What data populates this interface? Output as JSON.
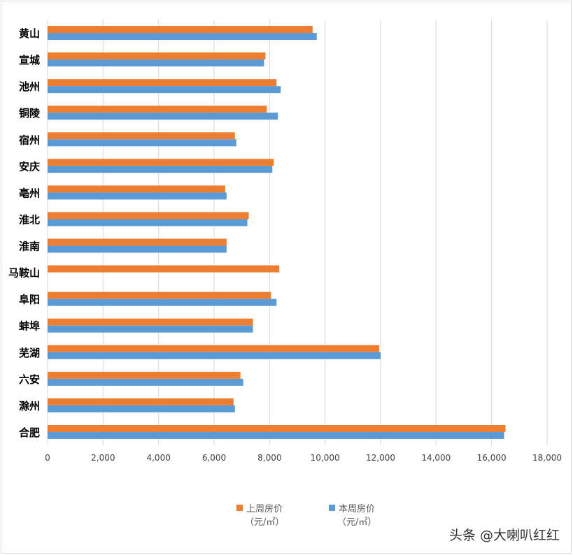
{
  "chart_data": {
    "type": "bar",
    "orientation": "horizontal",
    "categories": [
      "黄山",
      "宣城",
      "池州",
      "铜陵",
      "宿州",
      "安庆",
      "亳州",
      "淮北",
      "淮南",
      "马鞍山",
      "阜阳",
      "蚌埠",
      "芜湖",
      "六安",
      "滁州",
      "合肥"
    ],
    "series": [
      {
        "name": "上周房价",
        "unit": "（元/㎡）",
        "color": "#ED7D31",
        "values": [
          9550,
          7850,
          8250,
          7900,
          6750,
          8150,
          6400,
          7250,
          6450,
          8350,
          8050,
          7400,
          11950,
          6950,
          6700,
          16500
        ]
      },
      {
        "name": "本周房价",
        "unit": "（元/㎡）",
        "color": "#5B9BD5",
        "values": [
          9700,
          7800,
          8400,
          8300,
          6800,
          8100,
          6450,
          7200,
          6450,
          null,
          8250,
          7400,
          12000,
          7050,
          6750,
          16450
        ]
      }
    ],
    "x_ticks": [
      "0",
      "2,000",
      "4,000",
      "6,000",
      "8,000",
      "10,000",
      "12,000",
      "14,000",
      "16,000",
      "18,000"
    ],
    "xlim": [
      0,
      18000
    ],
    "grid": "vertical",
    "legend": "bottom"
  },
  "watermark": "头条 @大喇叭红红"
}
